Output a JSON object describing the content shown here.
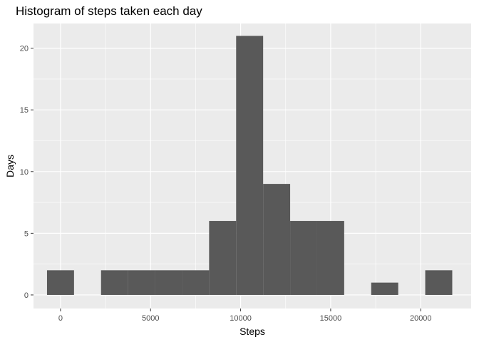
{
  "chart_data": {
    "type": "bar",
    "title": "Histogram of steps taken each day",
    "xlabel": "Steps",
    "ylabel": "Days",
    "xlim": [
      -1500,
      22800
    ],
    "ylim": [
      -1.1,
      22.0
    ],
    "x_ticks": [
      0,
      5000,
      10000,
      15000,
      20000
    ],
    "x_tick_labels": [
      "0",
      "5000",
      "10000",
      "15000",
      "20000"
    ],
    "y_ticks": [
      0,
      5,
      10,
      15,
      20
    ],
    "y_tick_labels": [
      "0",
      "5",
      "10",
      "15",
      "20"
    ],
    "bin_width": 1500,
    "bins": [
      {
        "x": 0,
        "count": 2
      },
      {
        "x": 1500,
        "count": 0
      },
      {
        "x": 3000,
        "count": 2
      },
      {
        "x": 4500,
        "count": 2
      },
      {
        "x": 6000,
        "count": 2
      },
      {
        "x": 7500,
        "count": 2
      },
      {
        "x": 9000,
        "count": 6
      },
      {
        "x": 10500,
        "count": 21
      },
      {
        "x": 12000,
        "count": 9
      },
      {
        "x": 13500,
        "count": 6
      },
      {
        "x": 15000,
        "count": 6
      },
      {
        "x": 16500,
        "count": 0
      },
      {
        "x": 18000,
        "count": 1
      },
      {
        "x": 19500,
        "count": 0
      },
      {
        "x": 21000,
        "count": 2
      }
    ],
    "grid": true,
    "colors": {
      "panel": "#EBEBEB",
      "grid": "#FFFFFF",
      "bar": "#595959"
    }
  }
}
